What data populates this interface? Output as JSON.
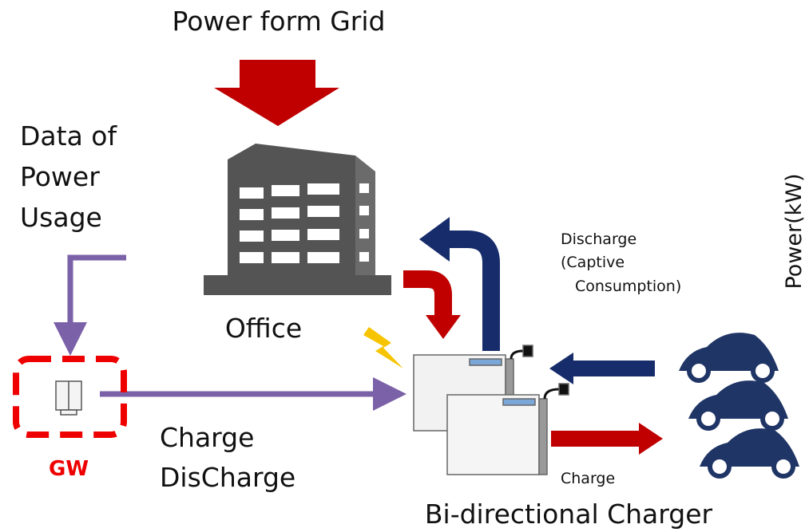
{
  "title": "Power form Grid",
  "data_source": {
    "lines": [
      "Data of",
      "Power",
      "Usage"
    ]
  },
  "office": {
    "label": "Office"
  },
  "discharge": {
    "lines": [
      "Discharge",
      "(Captive",
      "Consumption)"
    ]
  },
  "gateway": {
    "label": "GW"
  },
  "commands": {
    "lines": [
      "Charge",
      "DisCharge"
    ]
  },
  "charge": {
    "label": "Charge"
  },
  "charger": {
    "label": "Bi-directional Charger"
  },
  "axis_fragment": {
    "label": "Power(kW)"
  }
}
